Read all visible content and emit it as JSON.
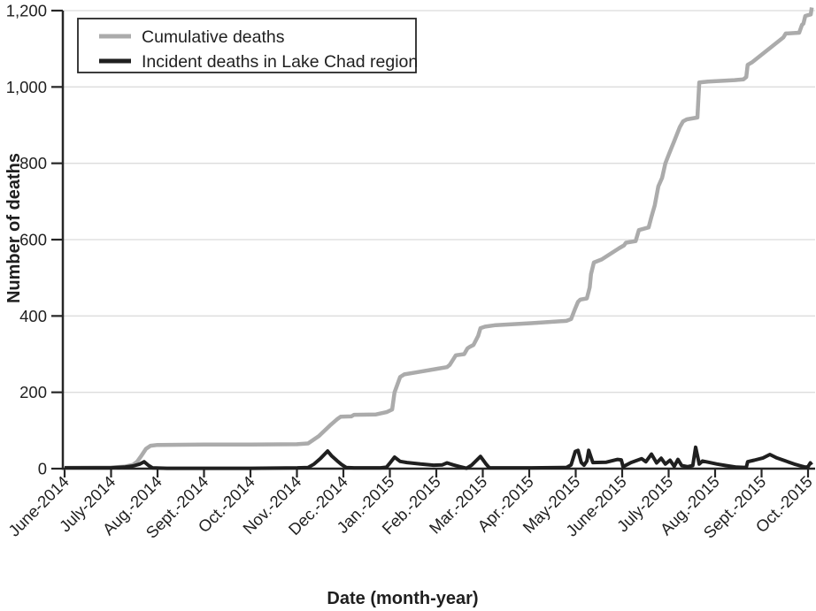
{
  "chart_data": {
    "type": "line",
    "title": "",
    "xlabel": "Date (month-year)",
    "ylabel": "Number of deaths",
    "x_unit": "months since June-2014 (0 = June-2014 tick, 1 tick per month)",
    "ylim": [
      0,
      1200
    ],
    "xlim_months": [
      0,
      16.1
    ],
    "grid": "horizontal",
    "legend_position": "top-left",
    "colors": {
      "axis": "#262626",
      "grid": "#dcdcdc",
      "text": "#1f1f1f",
      "background": "#ffffff"
    },
    "x_tick_labels": [
      "June-2014",
      "July-2014",
      "Aug.-2014",
      "Sept.-2014",
      "Oct.-2014",
      "Nov.-2014",
      "Dec.-2014",
      "Jan.-2015",
      "Feb.-2015",
      "Mar.-2015",
      "Apr.-2015",
      "May-2015",
      "June-2015",
      "July-2015",
      "Aug.-2015",
      "Sept.-2015",
      "Oct.-2015"
    ],
    "y_ticks": {
      "values": [
        0,
        200,
        400,
        600,
        800,
        1000,
        1200
      ],
      "labels": [
        "0",
        "200",
        "400",
        "600",
        "800",
        "1,000",
        "1,200"
      ]
    },
    "series": [
      {
        "name": "Cumulative deaths",
        "color": "#ababab",
        "stroke_width": 4.5,
        "points": [
          [
            0,
            2
          ],
          [
            1.0,
            3
          ],
          [
            1.28,
            5
          ],
          [
            1.47,
            10
          ],
          [
            1.56,
            18
          ],
          [
            1.66,
            35
          ],
          [
            1.75,
            52
          ],
          [
            1.85,
            60
          ],
          [
            2.0,
            62
          ],
          [
            3.0,
            63
          ],
          [
            4.0,
            63
          ],
          [
            5.0,
            64
          ],
          [
            5.24,
            66
          ],
          [
            5.47,
            85
          ],
          [
            5.71,
            113
          ],
          [
            5.87,
            130
          ],
          [
            5.94,
            136
          ],
          [
            6.17,
            137
          ],
          [
            6.23,
            141
          ],
          [
            6.7,
            142
          ],
          [
            6.93,
            148
          ],
          [
            7.05,
            155
          ],
          [
            7.1,
            200
          ],
          [
            7.22,
            240
          ],
          [
            7.31,
            247
          ],
          [
            7.56,
            252
          ],
          [
            8.04,
            262
          ],
          [
            8.23,
            266
          ],
          [
            8.29,
            272
          ],
          [
            8.42,
            297
          ],
          [
            8.6,
            300
          ],
          [
            8.67,
            315
          ],
          [
            8.72,
            319
          ],
          [
            8.8,
            324
          ],
          [
            8.9,
            348
          ],
          [
            8.95,
            368
          ],
          [
            9.05,
            372
          ],
          [
            9.28,
            376
          ],
          [
            10.04,
            381
          ],
          [
            10.8,
            387
          ],
          [
            10.9,
            392
          ],
          [
            10.99,
            420
          ],
          [
            11.05,
            437
          ],
          [
            11.1,
            443
          ],
          [
            11.24,
            446
          ],
          [
            11.3,
            475
          ],
          [
            11.33,
            510
          ],
          [
            11.39,
            540
          ],
          [
            11.56,
            548
          ],
          [
            11.94,
            578
          ],
          [
            12.04,
            585
          ],
          [
            12.08,
            592
          ],
          [
            12.29,
            596
          ],
          [
            12.36,
            625
          ],
          [
            12.57,
            632
          ],
          [
            12.63,
            660
          ],
          [
            12.7,
            690
          ],
          [
            12.78,
            740
          ],
          [
            12.86,
            762
          ],
          [
            12.93,
            800
          ],
          [
            13.01,
            825
          ],
          [
            13.12,
            858
          ],
          [
            13.24,
            895
          ],
          [
            13.31,
            910
          ],
          [
            13.39,
            915
          ],
          [
            13.62,
            920
          ],
          [
            13.66,
            1012
          ],
          [
            13.85,
            1014
          ],
          [
            14.42,
            1018
          ],
          [
            14.61,
            1020
          ],
          [
            14.67,
            1026
          ],
          [
            14.7,
            1058
          ],
          [
            14.8,
            1065
          ],
          [
            15.47,
            1130
          ],
          [
            15.52,
            1140
          ],
          [
            15.81,
            1142
          ],
          [
            15.87,
            1163
          ],
          [
            15.9,
            1166
          ],
          [
            15.94,
            1186
          ],
          [
            16.06,
            1190
          ],
          [
            16.08,
            1208
          ]
        ]
      },
      {
        "name": "Incident deaths in Lake Chad region",
        "color": "#1f1f1f",
        "stroke_width": 4,
        "points": [
          [
            0,
            2
          ],
          [
            0.99,
            2
          ],
          [
            1.28,
            4
          ],
          [
            1.47,
            7
          ],
          [
            1.62,
            12
          ],
          [
            1.71,
            18
          ],
          [
            1.81,
            8
          ],
          [
            1.89,
            2
          ],
          [
            2.2,
            1
          ],
          [
            3.01,
            1
          ],
          [
            4.0,
            1
          ],
          [
            5.01,
            2
          ],
          [
            5.24,
            3
          ],
          [
            5.37,
            12
          ],
          [
            5.5,
            26
          ],
          [
            5.66,
            46
          ],
          [
            5.75,
            33
          ],
          [
            5.87,
            20
          ],
          [
            5.96,
            11
          ],
          [
            6.06,
            3
          ],
          [
            6.23,
            2
          ],
          [
            6.8,
            2
          ],
          [
            6.93,
            4
          ],
          [
            7.01,
            16
          ],
          [
            7.1,
            30
          ],
          [
            7.22,
            19
          ],
          [
            7.37,
            16
          ],
          [
            7.66,
            12
          ],
          [
            7.94,
            9
          ],
          [
            8.13,
            10
          ],
          [
            8.23,
            15
          ],
          [
            8.36,
            10
          ],
          [
            8.51,
            5
          ],
          [
            8.65,
            1
          ],
          [
            8.76,
            9
          ],
          [
            8.95,
            32
          ],
          [
            9.07,
            12
          ],
          [
            9.14,
            2
          ],
          [
            10.04,
            2
          ],
          [
            10.8,
            3
          ],
          [
            10.9,
            10
          ],
          [
            10.99,
            45
          ],
          [
            11.05,
            48
          ],
          [
            11.12,
            16
          ],
          [
            11.18,
            9
          ],
          [
            11.24,
            20
          ],
          [
            11.28,
            48
          ],
          [
            11.33,
            30
          ],
          [
            11.37,
            16
          ],
          [
            11.66,
            17
          ],
          [
            11.9,
            24
          ],
          [
            11.98,
            23
          ],
          [
            12.02,
            5
          ],
          [
            12.19,
            16
          ],
          [
            12.42,
            26
          ],
          [
            12.51,
            18
          ],
          [
            12.63,
            38
          ],
          [
            12.74,
            15
          ],
          [
            12.84,
            27
          ],
          [
            12.93,
            12
          ],
          [
            13.03,
            22
          ],
          [
            13.12,
            6
          ],
          [
            13.2,
            24
          ],
          [
            13.28,
            8
          ],
          [
            13.41,
            5
          ],
          [
            13.52,
            8
          ],
          [
            13.58,
            56
          ],
          [
            13.66,
            12
          ],
          [
            13.73,
            20
          ],
          [
            13.85,
            17
          ],
          [
            14.04,
            12
          ],
          [
            14.23,
            8
          ],
          [
            14.46,
            4
          ],
          [
            14.67,
            3
          ],
          [
            14.7,
            18
          ],
          [
            14.84,
            22
          ],
          [
            15.03,
            28
          ],
          [
            15.18,
            37
          ],
          [
            15.33,
            28
          ],
          [
            15.52,
            20
          ],
          [
            15.7,
            12
          ],
          [
            15.85,
            7
          ],
          [
            15.94,
            4
          ],
          [
            16.0,
            5
          ],
          [
            16.05,
            15
          ],
          [
            16.08,
            10
          ]
        ]
      }
    ]
  }
}
